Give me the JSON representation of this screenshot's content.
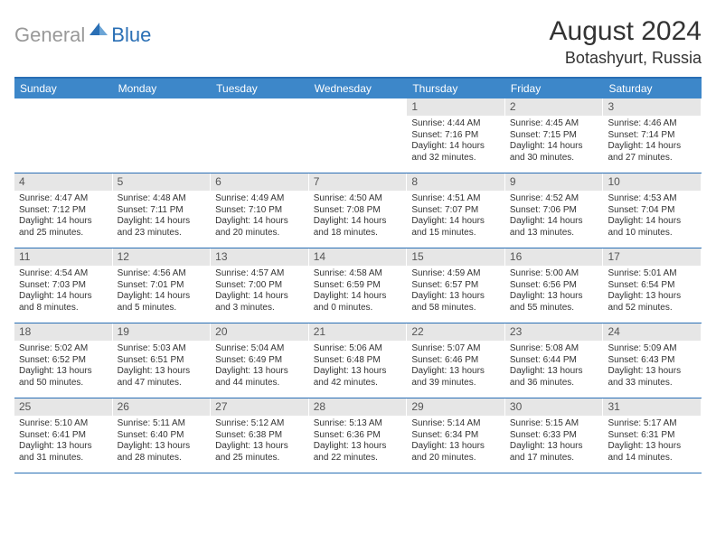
{
  "logo": {
    "general": "General",
    "blue": "Blue"
  },
  "title": "August 2024",
  "location": "Botashyurt, Russia",
  "colors": {
    "header_bg": "#3d87c9",
    "border": "#2a6fb5",
    "daynum_bg": "#e6e6e6",
    "text": "#333333",
    "logo_gray": "#999999",
    "logo_blue": "#2a6fb5"
  },
  "day_headers": [
    "Sunday",
    "Monday",
    "Tuesday",
    "Wednesday",
    "Thursday",
    "Friday",
    "Saturday"
  ],
  "weeks": [
    [
      {
        "n": "",
        "lines": []
      },
      {
        "n": "",
        "lines": []
      },
      {
        "n": "",
        "lines": []
      },
      {
        "n": "",
        "lines": []
      },
      {
        "n": "1",
        "lines": [
          "Sunrise: 4:44 AM",
          "Sunset: 7:16 PM",
          "Daylight: 14 hours and 32 minutes."
        ]
      },
      {
        "n": "2",
        "lines": [
          "Sunrise: 4:45 AM",
          "Sunset: 7:15 PM",
          "Daylight: 14 hours and 30 minutes."
        ]
      },
      {
        "n": "3",
        "lines": [
          "Sunrise: 4:46 AM",
          "Sunset: 7:14 PM",
          "Daylight: 14 hours and 27 minutes."
        ]
      }
    ],
    [
      {
        "n": "4",
        "lines": [
          "Sunrise: 4:47 AM",
          "Sunset: 7:12 PM",
          "Daylight: 14 hours and 25 minutes."
        ]
      },
      {
        "n": "5",
        "lines": [
          "Sunrise: 4:48 AM",
          "Sunset: 7:11 PM",
          "Daylight: 14 hours and 23 minutes."
        ]
      },
      {
        "n": "6",
        "lines": [
          "Sunrise: 4:49 AM",
          "Sunset: 7:10 PM",
          "Daylight: 14 hours and 20 minutes."
        ]
      },
      {
        "n": "7",
        "lines": [
          "Sunrise: 4:50 AM",
          "Sunset: 7:08 PM",
          "Daylight: 14 hours and 18 minutes."
        ]
      },
      {
        "n": "8",
        "lines": [
          "Sunrise: 4:51 AM",
          "Sunset: 7:07 PM",
          "Daylight: 14 hours and 15 minutes."
        ]
      },
      {
        "n": "9",
        "lines": [
          "Sunrise: 4:52 AM",
          "Sunset: 7:06 PM",
          "Daylight: 14 hours and 13 minutes."
        ]
      },
      {
        "n": "10",
        "lines": [
          "Sunrise: 4:53 AM",
          "Sunset: 7:04 PM",
          "Daylight: 14 hours and 10 minutes."
        ]
      }
    ],
    [
      {
        "n": "11",
        "lines": [
          "Sunrise: 4:54 AM",
          "Sunset: 7:03 PM",
          "Daylight: 14 hours and 8 minutes."
        ]
      },
      {
        "n": "12",
        "lines": [
          "Sunrise: 4:56 AM",
          "Sunset: 7:01 PM",
          "Daylight: 14 hours and 5 minutes."
        ]
      },
      {
        "n": "13",
        "lines": [
          "Sunrise: 4:57 AM",
          "Sunset: 7:00 PM",
          "Daylight: 14 hours and 3 minutes."
        ]
      },
      {
        "n": "14",
        "lines": [
          "Sunrise: 4:58 AM",
          "Sunset: 6:59 PM",
          "Daylight: 14 hours and 0 minutes."
        ]
      },
      {
        "n": "15",
        "lines": [
          "Sunrise: 4:59 AM",
          "Sunset: 6:57 PM",
          "Daylight: 13 hours and 58 minutes."
        ]
      },
      {
        "n": "16",
        "lines": [
          "Sunrise: 5:00 AM",
          "Sunset: 6:56 PM",
          "Daylight: 13 hours and 55 minutes."
        ]
      },
      {
        "n": "17",
        "lines": [
          "Sunrise: 5:01 AM",
          "Sunset: 6:54 PM",
          "Daylight: 13 hours and 52 minutes."
        ]
      }
    ],
    [
      {
        "n": "18",
        "lines": [
          "Sunrise: 5:02 AM",
          "Sunset: 6:52 PM",
          "Daylight: 13 hours and 50 minutes."
        ]
      },
      {
        "n": "19",
        "lines": [
          "Sunrise: 5:03 AM",
          "Sunset: 6:51 PM",
          "Daylight: 13 hours and 47 minutes."
        ]
      },
      {
        "n": "20",
        "lines": [
          "Sunrise: 5:04 AM",
          "Sunset: 6:49 PM",
          "Daylight: 13 hours and 44 minutes."
        ]
      },
      {
        "n": "21",
        "lines": [
          "Sunrise: 5:06 AM",
          "Sunset: 6:48 PM",
          "Daylight: 13 hours and 42 minutes."
        ]
      },
      {
        "n": "22",
        "lines": [
          "Sunrise: 5:07 AM",
          "Sunset: 6:46 PM",
          "Daylight: 13 hours and 39 minutes."
        ]
      },
      {
        "n": "23",
        "lines": [
          "Sunrise: 5:08 AM",
          "Sunset: 6:44 PM",
          "Daylight: 13 hours and 36 minutes."
        ]
      },
      {
        "n": "24",
        "lines": [
          "Sunrise: 5:09 AM",
          "Sunset: 6:43 PM",
          "Daylight: 13 hours and 33 minutes."
        ]
      }
    ],
    [
      {
        "n": "25",
        "lines": [
          "Sunrise: 5:10 AM",
          "Sunset: 6:41 PM",
          "Daylight: 13 hours and 31 minutes."
        ]
      },
      {
        "n": "26",
        "lines": [
          "Sunrise: 5:11 AM",
          "Sunset: 6:40 PM",
          "Daylight: 13 hours and 28 minutes."
        ]
      },
      {
        "n": "27",
        "lines": [
          "Sunrise: 5:12 AM",
          "Sunset: 6:38 PM",
          "Daylight: 13 hours and 25 minutes."
        ]
      },
      {
        "n": "28",
        "lines": [
          "Sunrise: 5:13 AM",
          "Sunset: 6:36 PM",
          "Daylight: 13 hours and 22 minutes."
        ]
      },
      {
        "n": "29",
        "lines": [
          "Sunrise: 5:14 AM",
          "Sunset: 6:34 PM",
          "Daylight: 13 hours and 20 minutes."
        ]
      },
      {
        "n": "30",
        "lines": [
          "Sunrise: 5:15 AM",
          "Sunset: 6:33 PM",
          "Daylight: 13 hours and 17 minutes."
        ]
      },
      {
        "n": "31",
        "lines": [
          "Sunrise: 5:17 AM",
          "Sunset: 6:31 PM",
          "Daylight: 13 hours and 14 minutes."
        ]
      }
    ]
  ]
}
